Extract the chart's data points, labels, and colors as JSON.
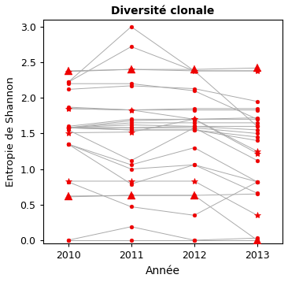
{
  "title": "Diversité clonale",
  "xlabel": "Année",
  "ylabel": "Entropie de Shannon",
  "years": [
    2010,
    2011,
    2012,
    2013
  ],
  "xlim": [
    2009.6,
    2013.4
  ],
  "ylim": [
    -0.05,
    3.1
  ],
  "yticks": [
    0.0,
    0.5,
    1.0,
    1.5,
    2.0,
    2.5,
    3.0
  ],
  "color": "#EE0000",
  "line_color": "#AAAAAA",
  "series": [
    {
      "type": "dot",
      "values": [
        0.0,
        0.0,
        0.0,
        0.0
      ]
    },
    {
      "type": "dot",
      "values": [
        0.0,
        0.19,
        0.0,
        0.03
      ]
    },
    {
      "type": "dot",
      "values": [
        0.61,
        0.63,
        0.63,
        0.65
      ]
    },
    {
      "type": "triangle",
      "values": [
        0.62,
        0.63,
        0.63,
        0.0
      ]
    },
    {
      "type": "dot",
      "values": [
        0.82,
        0.47,
        0.35,
        0.82
      ]
    },
    {
      "type": "star",
      "values": [
        0.83,
        0.83,
        0.83,
        0.35
      ]
    },
    {
      "type": "dot",
      "values": [
        1.35,
        0.79,
        1.06,
        0.66
      ]
    },
    {
      "type": "dot",
      "values": [
        1.35,
        1.0,
        1.06,
        0.82
      ]
    },
    {
      "type": "dot",
      "values": [
        1.35,
        1.06,
        1.3,
        0.82
      ]
    },
    {
      "type": "dot",
      "values": [
        1.55,
        1.12,
        1.58,
        1.12
      ]
    },
    {
      "type": "star",
      "values": [
        1.51,
        1.52,
        1.7,
        1.22
      ]
    },
    {
      "type": "dot",
      "values": [
        1.58,
        1.55,
        1.55,
        1.4
      ]
    },
    {
      "type": "dot",
      "values": [
        1.58,
        1.55,
        1.55,
        1.45
      ]
    },
    {
      "type": "dot",
      "values": [
        1.58,
        1.58,
        1.58,
        1.5
      ]
    },
    {
      "type": "dot",
      "values": [
        1.58,
        1.58,
        1.6,
        1.55
      ]
    },
    {
      "type": "dot",
      "values": [
        1.58,
        1.62,
        1.6,
        1.6
      ]
    },
    {
      "type": "dot",
      "values": [
        1.58,
        1.65,
        1.65,
        1.65
      ]
    },
    {
      "type": "dot",
      "values": [
        1.58,
        1.68,
        1.7,
        1.7
      ]
    },
    {
      "type": "dot",
      "values": [
        1.6,
        1.7,
        1.7,
        1.72
      ]
    },
    {
      "type": "star",
      "values": [
        1.85,
        1.83,
        1.7,
        1.25
      ]
    },
    {
      "type": "dot",
      "values": [
        1.85,
        1.83,
        1.83,
        1.83
      ]
    },
    {
      "type": "dot",
      "values": [
        1.87,
        1.83,
        1.85,
        1.85
      ]
    },
    {
      "type": "dot",
      "values": [
        2.12,
        2.17,
        2.13,
        1.95
      ]
    },
    {
      "type": "dot",
      "values": [
        2.2,
        2.2,
        2.1,
        1.7
      ]
    },
    {
      "type": "star",
      "values": [
        2.37,
        2.4,
        2.38,
        2.38
      ]
    },
    {
      "type": "triangle",
      "values": [
        2.38,
        2.4,
        2.4,
        2.42
      ]
    },
    {
      "type": "dot",
      "values": [
        2.22,
        2.72,
        2.38,
        1.6
      ]
    },
    {
      "type": "dot",
      "values": [
        2.22,
        3.0,
        2.38,
        2.38
      ]
    }
  ]
}
